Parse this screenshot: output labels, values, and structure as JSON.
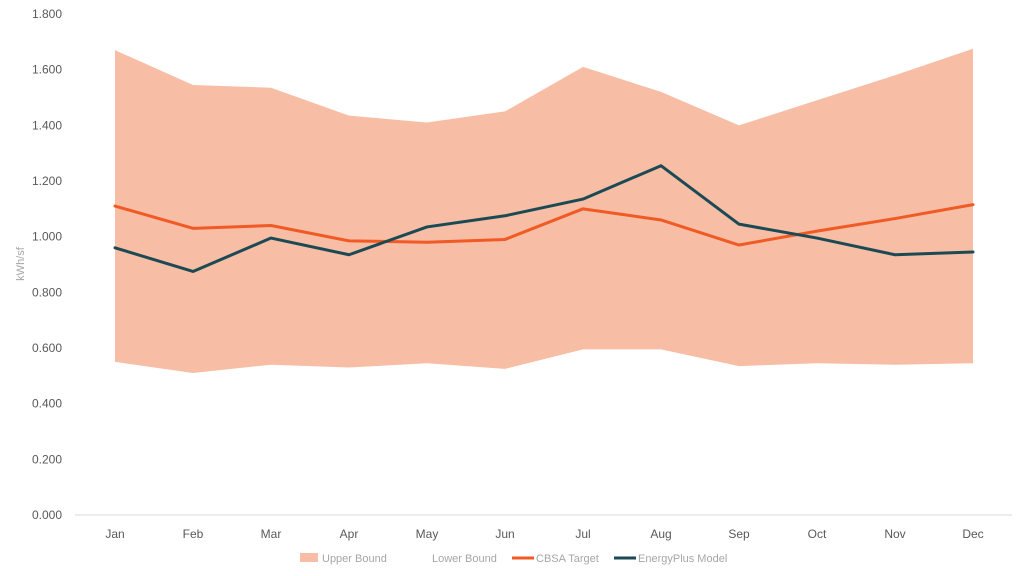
{
  "chart_data": {
    "type": "area",
    "categories": [
      "Jan",
      "Feb",
      "Mar",
      "Apr",
      "May",
      "Jun",
      "Jul",
      "Aug",
      "Sep",
      "Oct",
      "Nov",
      "Dec"
    ],
    "ylabel": "kWh/sf",
    "xlabel": "",
    "title": "",
    "ylim": [
      0,
      1.8
    ],
    "yticks": [
      "0.000",
      "0.200",
      "0.400",
      "0.600",
      "0.800",
      "1.000",
      "1.200",
      "1.400",
      "1.600",
      "1.800"
    ],
    "grid": false,
    "legend_position": "bottom",
    "series": [
      {
        "name": "Upper Bound",
        "kind": "area",
        "color": "#f8bda5",
        "values": [
          1.67,
          1.545,
          1.535,
          1.435,
          1.41,
          1.45,
          1.61,
          1.52,
          1.4,
          1.49,
          1.58,
          1.675
        ]
      },
      {
        "name": "Lower Bound",
        "kind": "area",
        "color": "#ffffff",
        "values": [
          0.55,
          0.51,
          0.54,
          0.53,
          0.545,
          0.525,
          0.595,
          0.595,
          0.535,
          0.545,
          0.54,
          0.545
        ]
      },
      {
        "name": "CBSA Target",
        "kind": "line",
        "color": "#f05a25",
        "values": [
          1.11,
          1.03,
          1.04,
          0.985,
          0.98,
          0.99,
          1.1,
          1.06,
          0.97,
          1.02,
          1.065,
          1.115
        ]
      },
      {
        "name": "EnergyPlus Model",
        "kind": "line",
        "color": "#1b4a54",
        "values": [
          0.96,
          0.875,
          0.995,
          0.935,
          1.035,
          1.075,
          1.135,
          1.255,
          1.045,
          0.995,
          0.935,
          0.945
        ]
      }
    ]
  }
}
